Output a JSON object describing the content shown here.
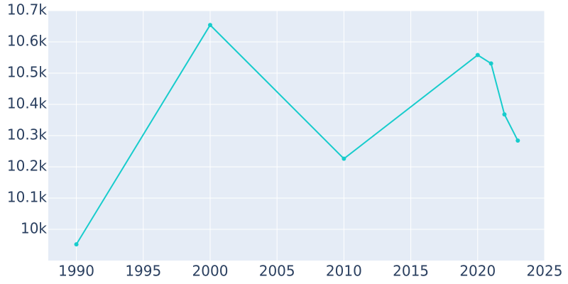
{
  "chart_data": {
    "type": "line",
    "x": [
      1990,
      2000,
      2010,
      2020,
      2021,
      2022,
      2023
    ],
    "series": [
      {
        "color": "#17cccc",
        "values": [
          9952,
          10654,
          10226,
          10558,
          10531,
          10368,
          10284
        ]
      }
    ],
    "xlim": [
      1987.9,
      2025
    ],
    "xticks": [
      1990,
      1995,
      2000,
      2005,
      2010,
      2015,
      2020,
      2025
    ],
    "ylim": [
      9900,
      10700
    ],
    "yticks": [
      {
        "value": 10000,
        "label": "10k"
      },
      {
        "value": 10100,
        "label": "10.1k"
      },
      {
        "value": 10200,
        "label": "10.2k"
      },
      {
        "value": 10300,
        "label": "10.3k"
      },
      {
        "value": 10400,
        "label": "10.4k"
      },
      {
        "value": 10500,
        "label": "10.5k"
      },
      {
        "value": 10600,
        "label": "10.6k"
      },
      {
        "value": 10700,
        "label": "10.7k"
      }
    ],
    "grid": true
  }
}
